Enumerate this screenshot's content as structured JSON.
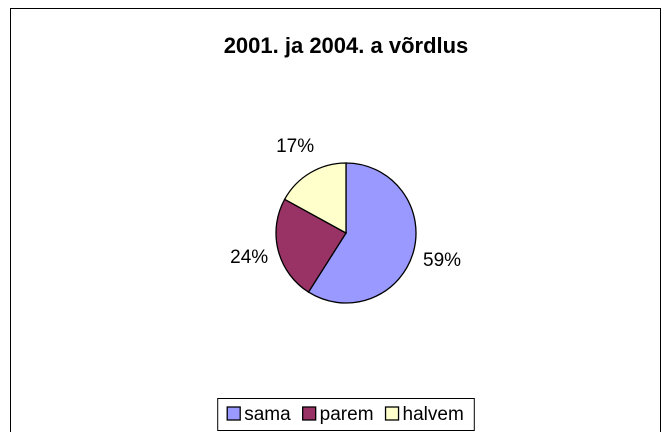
{
  "chart_data": {
    "type": "pie",
    "title": "2001. ja 2004. a võrdlus",
    "categories": [
      "sama",
      "parem",
      "halvem"
    ],
    "values": [
      59,
      24,
      17
    ],
    "value_labels": [
      "59%",
      "24%",
      "17%"
    ],
    "colors": [
      "#9999ff",
      "#993366",
      "#ffffcc"
    ],
    "legend": "bottom"
  }
}
